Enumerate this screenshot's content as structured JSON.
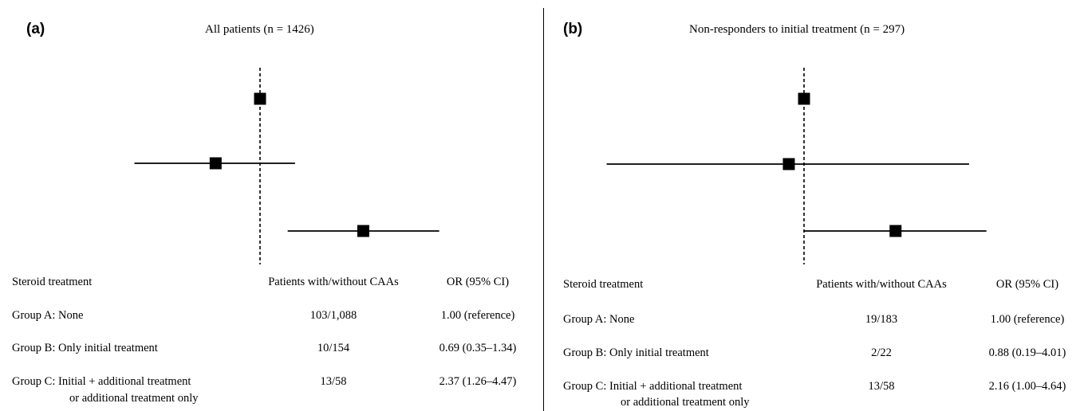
{
  "chart_data": [
    {
      "type": "forest",
      "panel_label": "(a)",
      "title": "All patients (n = 1426)",
      "columns": [
        "Steroid treatment",
        "Patients with/without CAAs",
        "OR (95% CI)"
      ],
      "reference_line": 1.0,
      "rows": [
        {
          "group": "Group A: None",
          "group_line2": "",
          "counts": "103/1,088",
          "or_text": "1.00 (reference)",
          "or": 1.0,
          "ci_low": 1.0,
          "ci_high": 1.0
        },
        {
          "group": "Group B: Only initial treatment",
          "group_line2": "",
          "counts": "10/154",
          "or_text": "0.69 (0.35–1.34)",
          "or": 0.69,
          "ci_low": 0.35,
          "ci_high": 1.34
        },
        {
          "group": "Group C: Initial + additional treatment",
          "group_line2": "or additional treatment only",
          "counts": "13/58",
          "or_text": "2.37 (1.26–4.47)",
          "or": 2.37,
          "ci_low": 1.26,
          "ci_high": 4.47
        }
      ]
    },
    {
      "type": "forest",
      "panel_label": "(b)",
      "title": "Non-responders to initial treatment (n = 297)",
      "columns": [
        "Steroid treatment",
        "Patients with/without CAAs",
        "OR (95% CI)"
      ],
      "reference_line": 1.0,
      "rows": [
        {
          "group": "Group A: None",
          "group_line2": "",
          "counts": "19/183",
          "or_text": "1.00 (reference)",
          "or": 1.0,
          "ci_low": 1.0,
          "ci_high": 1.0
        },
        {
          "group": "Group B: Only initial treatment",
          "group_line2": "",
          "counts": "2/22",
          "or_text": "0.88 (0.19–4.01)",
          "or": 0.88,
          "ci_low": 0.19,
          "ci_high": 4.01
        },
        {
          "group": "Group C: Initial + additional treatment",
          "group_line2": "or additional treatment only",
          "counts": "13/58",
          "or_text": "2.16 (1.00–4.64)",
          "or": 2.16,
          "ci_low": 1.0,
          "ci_high": 4.64
        }
      ]
    }
  ]
}
